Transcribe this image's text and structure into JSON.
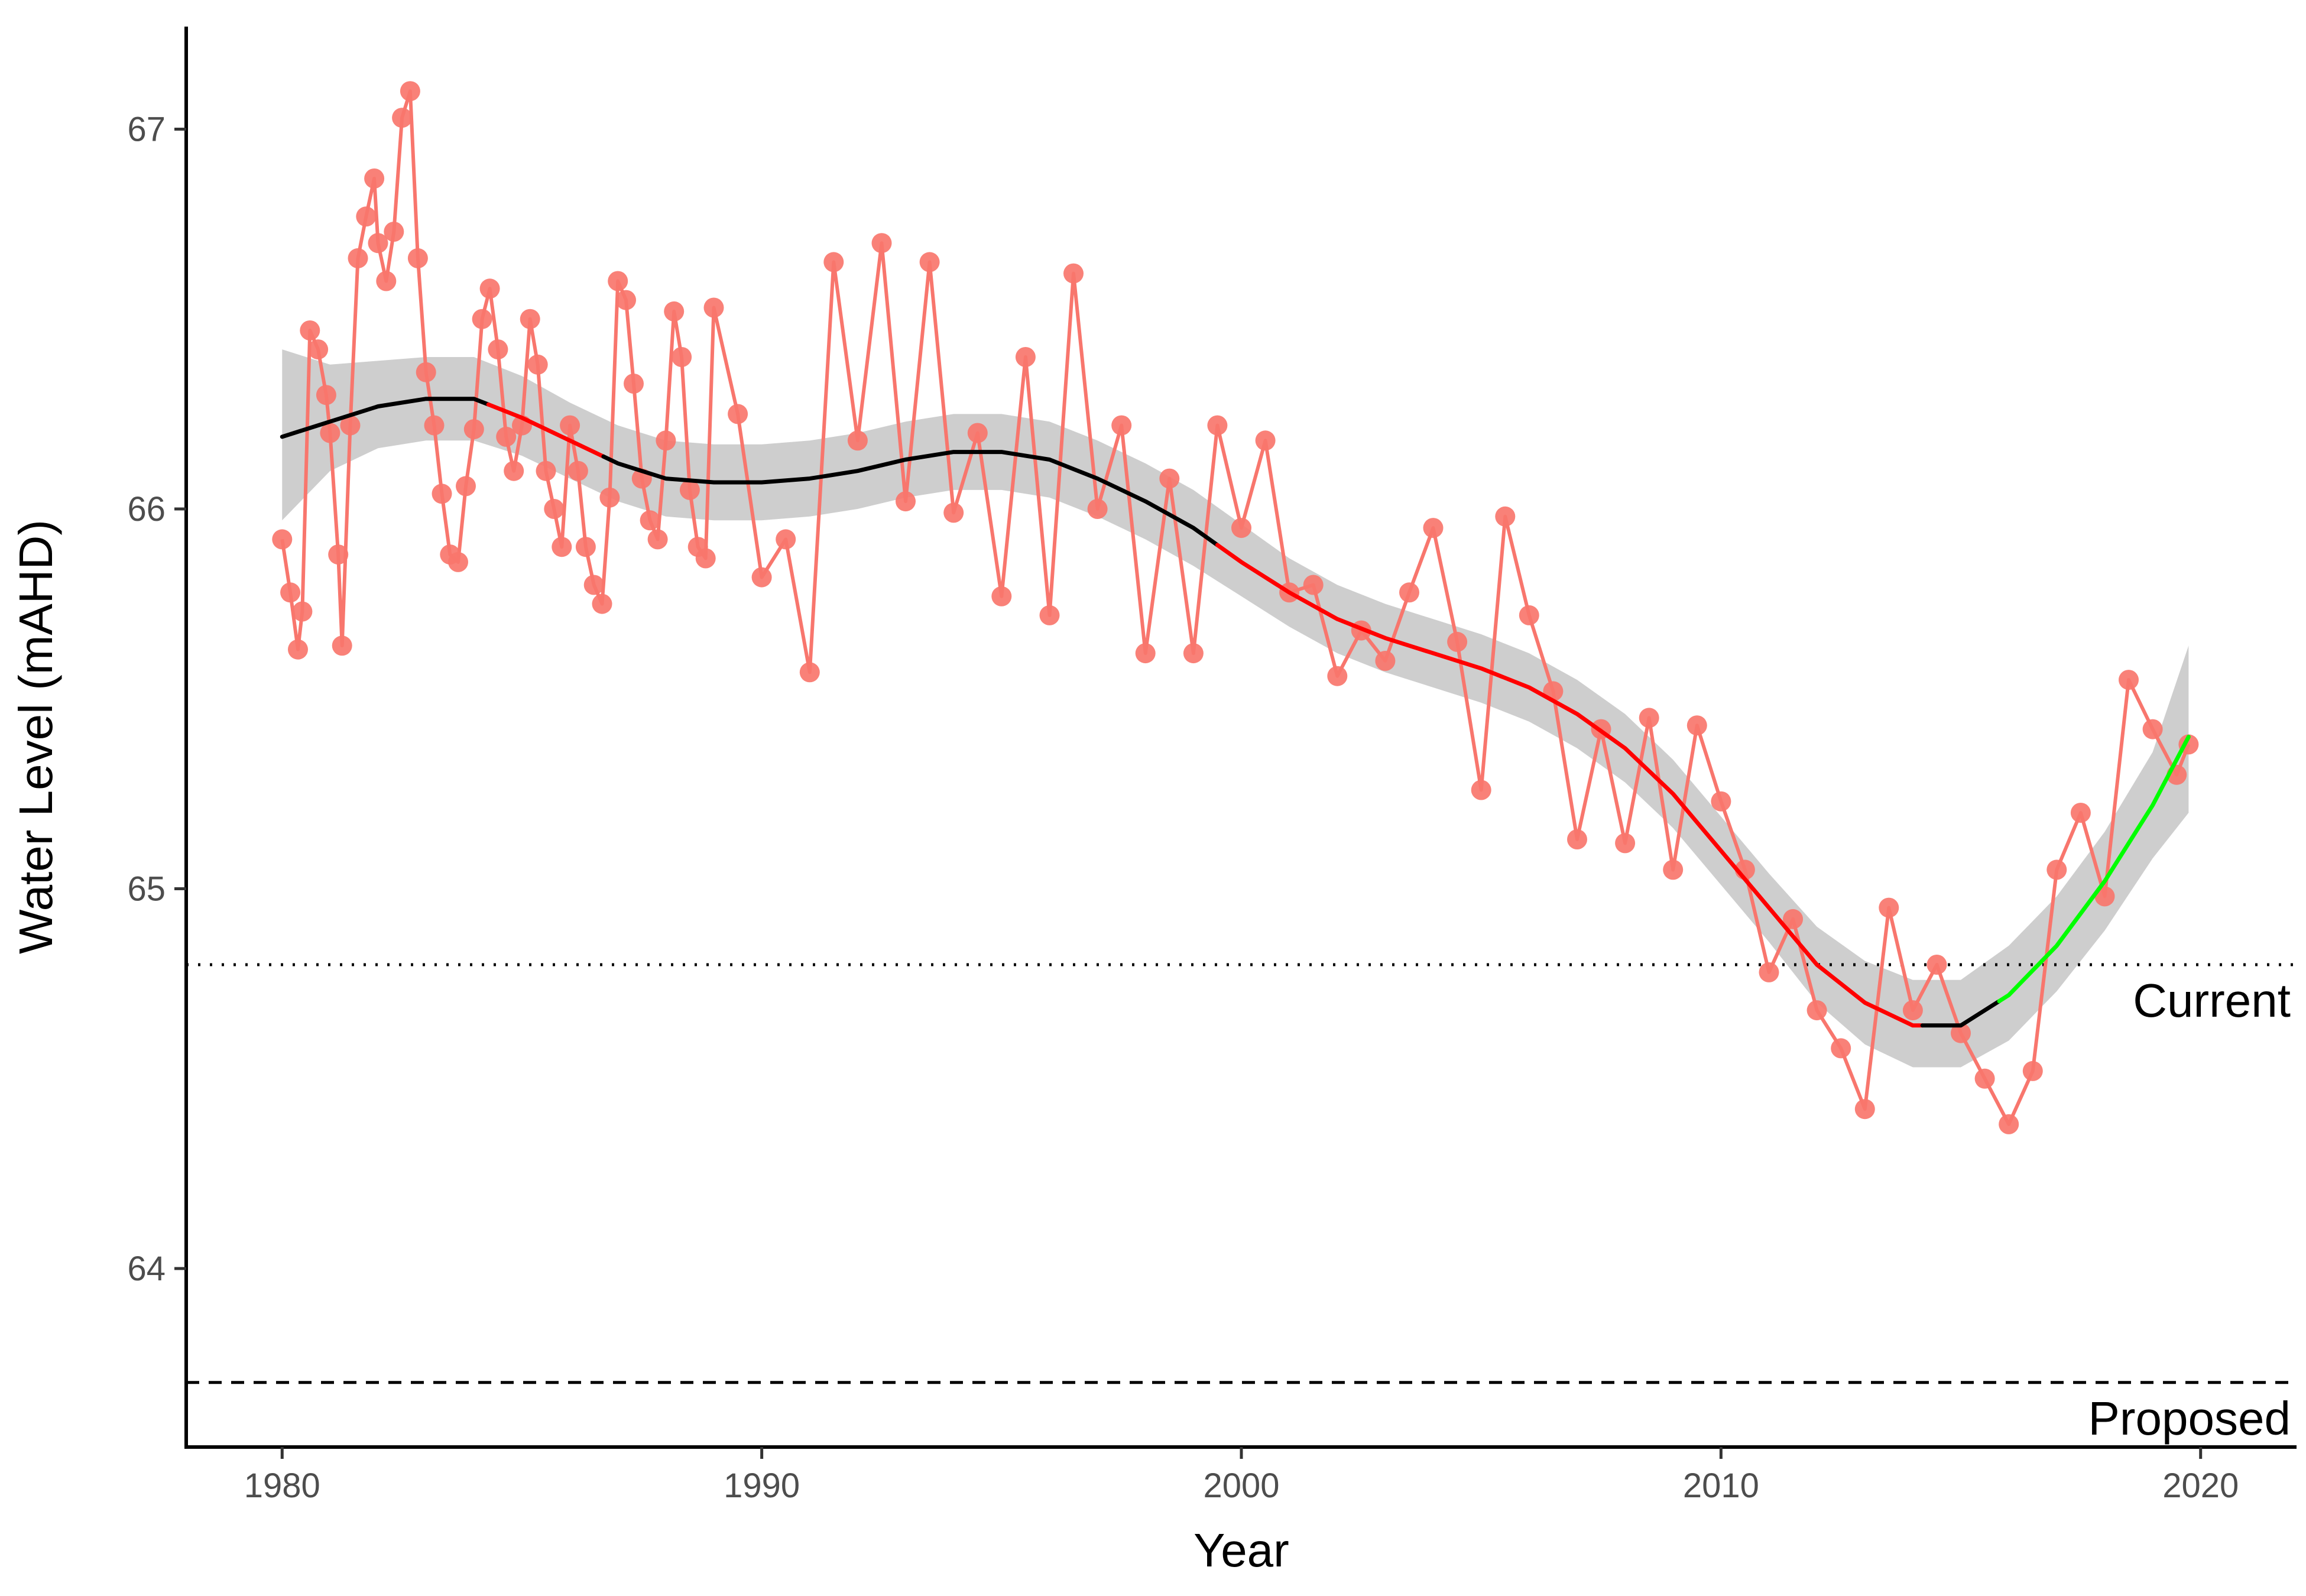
{
  "chart_data": {
    "type": "line",
    "title": "",
    "xlabel": "Year",
    "ylabel": "Water Level (mAHD)",
    "xlim": [
      1978,
      2022
    ],
    "ylim": [
      63.53,
      67.27
    ],
    "x_ticks": [
      1980,
      1990,
      2000,
      2010,
      2020
    ],
    "y_ticks": [
      64,
      65,
      66,
      67
    ],
    "grid": false,
    "legend": "none",
    "colors": {
      "observations": "#F8766D",
      "trend_default": "#000000",
      "trend_declining": "#FF0000",
      "trend_rising": "#00FF00",
      "confidence_band": "#BEBEBE"
    },
    "reference_lines": [
      {
        "label": "Current",
        "y": 64.8,
        "style": "dotted"
      },
      {
        "label": "Proposed",
        "y": 63.7,
        "style": "dashed"
      }
    ],
    "series": [
      {
        "type": "line+points",
        "x": [
          1980.0,
          1980.17,
          1980.33,
          1980.42,
          1980.58,
          1980.75,
          1980.92,
          1981.0,
          1981.17,
          1981.25,
          1981.42,
          1981.58,
          1981.75,
          1981.92,
          1982.0,
          1982.17,
          1982.33,
          1982.5,
          1982.67,
          1982.83,
          1983.0,
          1983.17,
          1983.33,
          1983.5,
          1983.67,
          1983.83,
          1984.0,
          1984.17,
          1984.33,
          1984.5,
          1984.67,
          1984.83,
          1985.0,
          1985.17,
          1985.33,
          1985.5,
          1985.67,
          1985.83,
          1986.0,
          1986.17,
          1986.33,
          1986.5,
          1986.67,
          1986.83,
          1987.0,
          1987.17,
          1987.33,
          1987.5,
          1987.67,
          1987.83,
          1988.0,
          1988.17,
          1988.33,
          1988.5,
          1988.67,
          1988.83,
          1989.0,
          1989.5,
          1990.0,
          1990.5,
          1991.0,
          1991.5,
          1992.0,
          1992.5,
          1993.0,
          1993.5,
          1994.0,
          1994.5,
          1995.0,
          1995.5,
          1996.0,
          1996.5,
          1997.0,
          1997.5,
          1998.0,
          1998.5,
          1999.0,
          1999.5,
          2000.0,
          2000.5,
          2001.0,
          2001.5,
          2002.0,
          2002.5,
          2003.0,
          2003.5,
          2004.0,
          2004.5,
          2005.0,
          2005.5,
          2006.0,
          2006.5,
          2007.0,
          2007.5,
          2008.0,
          2008.5,
          2009.0,
          2009.5,
          2010.0,
          2010.5,
          2011.0,
          2011.5,
          2012.0,
          2012.5,
          2013.0,
          2013.5,
          2014.0,
          2014.5,
          2015.0,
          2015.5,
          2016.0,
          2016.5,
          2017.0,
          2017.5,
          2018.0,
          2018.5,
          2019.0,
          2019.5,
          2019.75
        ],
        "values": [
          65.92,
          65.78,
          65.63,
          65.73,
          66.47,
          66.42,
          66.3,
          66.2,
          65.88,
          65.64,
          66.22,
          66.66,
          66.77,
          66.87,
          66.7,
          66.6,
          66.73,
          67.03,
          67.1,
          66.66,
          66.36,
          66.22,
          66.04,
          65.88,
          65.86,
          66.06,
          66.21,
          66.5,
          66.58,
          66.42,
          66.19,
          66.1,
          66.22,
          66.5,
          66.38,
          66.1,
          66.0,
          65.9,
          66.22,
          66.1,
          65.9,
          65.8,
          65.75,
          66.03,
          66.6,
          66.55,
          66.33,
          66.08,
          65.97,
          65.92,
          66.18,
          66.52,
          66.4,
          66.05,
          65.9,
          65.87,
          66.53,
          66.25,
          65.82,
          65.92,
          65.57,
          66.65,
          66.18,
          66.7,
          66.02,
          66.65,
          65.99,
          66.2,
          65.77,
          66.4,
          65.72,
          66.62,
          66.0,
          66.22,
          65.62,
          66.08,
          65.62,
          66.22,
          65.95,
          66.18,
          65.78,
          65.8,
          65.56,
          65.68,
          65.6,
          65.78,
          65.95,
          65.65,
          65.26,
          65.98,
          65.72,
          65.52,
          65.13,
          65.42,
          65.12,
          65.45,
          65.05,
          65.43,
          65.23,
          65.05,
          64.78,
          64.92,
          64.68,
          64.58,
          64.42,
          64.95,
          64.68,
          64.8,
          64.62,
          64.5,
          64.38,
          64.52,
          65.05,
          65.2,
          64.98,
          65.55,
          65.42,
          65.3,
          65.38
        ]
      },
      {
        "name": "",
        "type": "smooth-trend",
        "x": [
          1980,
          1981,
          1982,
          1983,
          1984,
          1985,
          1986,
          1987,
          1988,
          1989,
          1990,
          1991,
          1992,
          1993,
          1994,
          1995,
          1996,
          1997,
          1998,
          1999,
          2000,
          2001,
          2002,
          2003,
          2004,
          2005,
          2006,
          2007,
          2008,
          2009,
          2010,
          2011,
          2012,
          2013,
          2014,
          2015,
          2016,
          2017,
          2018,
          2019,
          2019.75
        ],
        "values": [
          66.19,
          66.23,
          66.27,
          66.29,
          66.29,
          66.24,
          66.18,
          66.12,
          66.08,
          66.07,
          66.07,
          66.08,
          66.1,
          66.13,
          66.15,
          66.15,
          66.13,
          66.08,
          66.02,
          65.95,
          65.86,
          65.78,
          65.71,
          65.66,
          65.62,
          65.58,
          65.53,
          65.46,
          65.37,
          65.25,
          65.1,
          64.95,
          64.8,
          64.7,
          64.64,
          64.64,
          64.72,
          64.85,
          65.02,
          65.22,
          65.4
        ],
        "lower": [
          65.97,
          66.1,
          66.16,
          66.18,
          66.18,
          66.14,
          66.08,
          66.02,
          65.98,
          65.97,
          65.97,
          65.98,
          66.0,
          66.03,
          66.05,
          66.05,
          66.03,
          65.98,
          65.92,
          65.85,
          65.77,
          65.69,
          65.62,
          65.57,
          65.53,
          65.49,
          65.44,
          65.37,
          65.28,
          65.16,
          65.01,
          64.86,
          64.7,
          64.59,
          64.53,
          64.53,
          64.6,
          64.73,
          64.89,
          65.08,
          65.2
        ],
        "upper": [
          66.42,
          66.38,
          66.39,
          66.4,
          66.4,
          66.35,
          66.28,
          66.22,
          66.18,
          66.17,
          66.17,
          66.18,
          66.2,
          66.23,
          66.25,
          66.25,
          66.23,
          66.18,
          66.12,
          66.05,
          65.96,
          65.87,
          65.8,
          65.75,
          65.71,
          65.67,
          65.62,
          65.55,
          65.46,
          65.34,
          65.19,
          65.04,
          64.9,
          64.81,
          64.76,
          64.76,
          64.85,
          64.98,
          65.15,
          65.36,
          65.64
        ],
        "segments": [
          {
            "from": 1980,
            "to": 1984.3,
            "trend": "default"
          },
          {
            "from": 1984.3,
            "to": 1986.7,
            "trend": "declining"
          },
          {
            "from": 1986.7,
            "to": 1999.5,
            "trend": "default"
          },
          {
            "from": 1999.5,
            "to": 2014.2,
            "trend": "declining"
          },
          {
            "from": 2014.2,
            "to": 2015.8,
            "trend": "default"
          },
          {
            "from": 2015.8,
            "to": 2019.75,
            "trend": "rising"
          }
        ]
      }
    ]
  }
}
